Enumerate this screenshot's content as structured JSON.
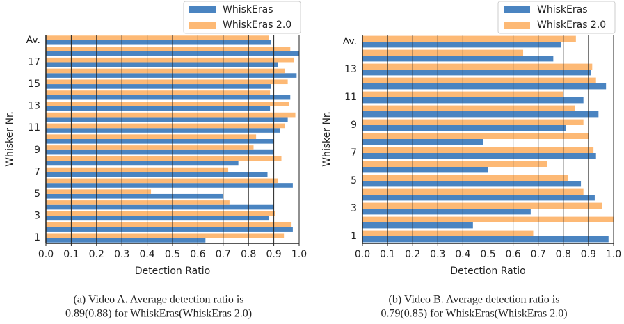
{
  "chart_data": [
    {
      "type": "bar",
      "orientation": "horizontal",
      "categories": [
        "1",
        null,
        "3",
        null,
        "5",
        null,
        "7",
        null,
        "9",
        null,
        "11",
        null,
        "13",
        null,
        "15",
        null,
        "17",
        null,
        "Av."
      ],
      "series": [
        {
          "name": "WhiskEras",
          "color": "#4a84c1",
          "values": [
            0.63,
            0.975,
            0.88,
            0.9,
            0.7,
            0.975,
            0.875,
            0.76,
            0.9,
            0.9,
            0.925,
            0.955,
            0.885,
            0.965,
            0.89,
            0.99,
            0.915,
            1.0,
            0.89
          ]
        },
        {
          "name": "WhiskEras 2.0",
          "color": "#fdb975",
          "values": [
            0.94,
            0.97,
            0.905,
            0.725,
            0.415,
            0.915,
            0.72,
            0.93,
            0.82,
            0.83,
            0.945,
            0.985,
            0.96,
            0.885,
            0.955,
            0.945,
            0.98,
            0.965,
            0.88
          ]
        }
      ],
      "xlim": [
        0,
        1
      ],
      "xticks": [
        {
          "value": 0,
          "label": "0.0"
        },
        0.1,
        0.2,
        0.3,
        0.4,
        0.5,
        0.6,
        0.7,
        0.8,
        0.9,
        {
          "value": 1,
          "label": "1.0"
        }
      ],
      "xlabel": "Detection Ratio",
      "ylabel": "Whisker Nr.",
      "grid": true,
      "legend": "upper right",
      "caption": [
        "(a) Video A. Average detection ratio is",
        "0.89(0.88) for WhiskEras(WhiskEras 2.0)"
      ]
    },
    {
      "type": "bar",
      "orientation": "horizontal",
      "categories": [
        "1",
        null,
        "3",
        null,
        "5",
        null,
        "7",
        null,
        "9",
        null,
        "11",
        null,
        "13",
        null,
        "Av."
      ],
      "series": [
        {
          "name": "WhiskEras",
          "color": "#4a84c1",
          "values": [
            0.98,
            0.44,
            0.67,
            0.925,
            0.87,
            0.5,
            0.93,
            0.48,
            0.81,
            0.94,
            0.88,
            0.97,
            0.91,
            0.76,
            0.79
          ]
        },
        {
          "name": "WhiskEras 2.0",
          "color": "#fdb975",
          "values": [
            0.68,
            1.0,
            0.955,
            0.88,
            0.82,
            0.735,
            0.92,
            0.9,
            0.88,
            0.845,
            0.8,
            0.93,
            0.915,
            0.64,
            0.85
          ]
        }
      ],
      "xlim": [
        0,
        1
      ],
      "xticks": [
        {
          "value": 0,
          "label": "0.0"
        },
        0.1,
        0.2,
        0.3,
        0.4,
        0.5,
        0.6,
        0.7,
        0.8,
        0.9,
        {
          "value": 1,
          "label": "1.0"
        }
      ],
      "xlabel": "Detection Ratio",
      "ylabel": "Whisker Nr.",
      "grid": true,
      "legend": "upper right",
      "caption": [
        "(b) Video B. Average detection ratio is",
        "0.79(0.85) for WhiskEras(WhiskEras 2.0)"
      ]
    }
  ]
}
